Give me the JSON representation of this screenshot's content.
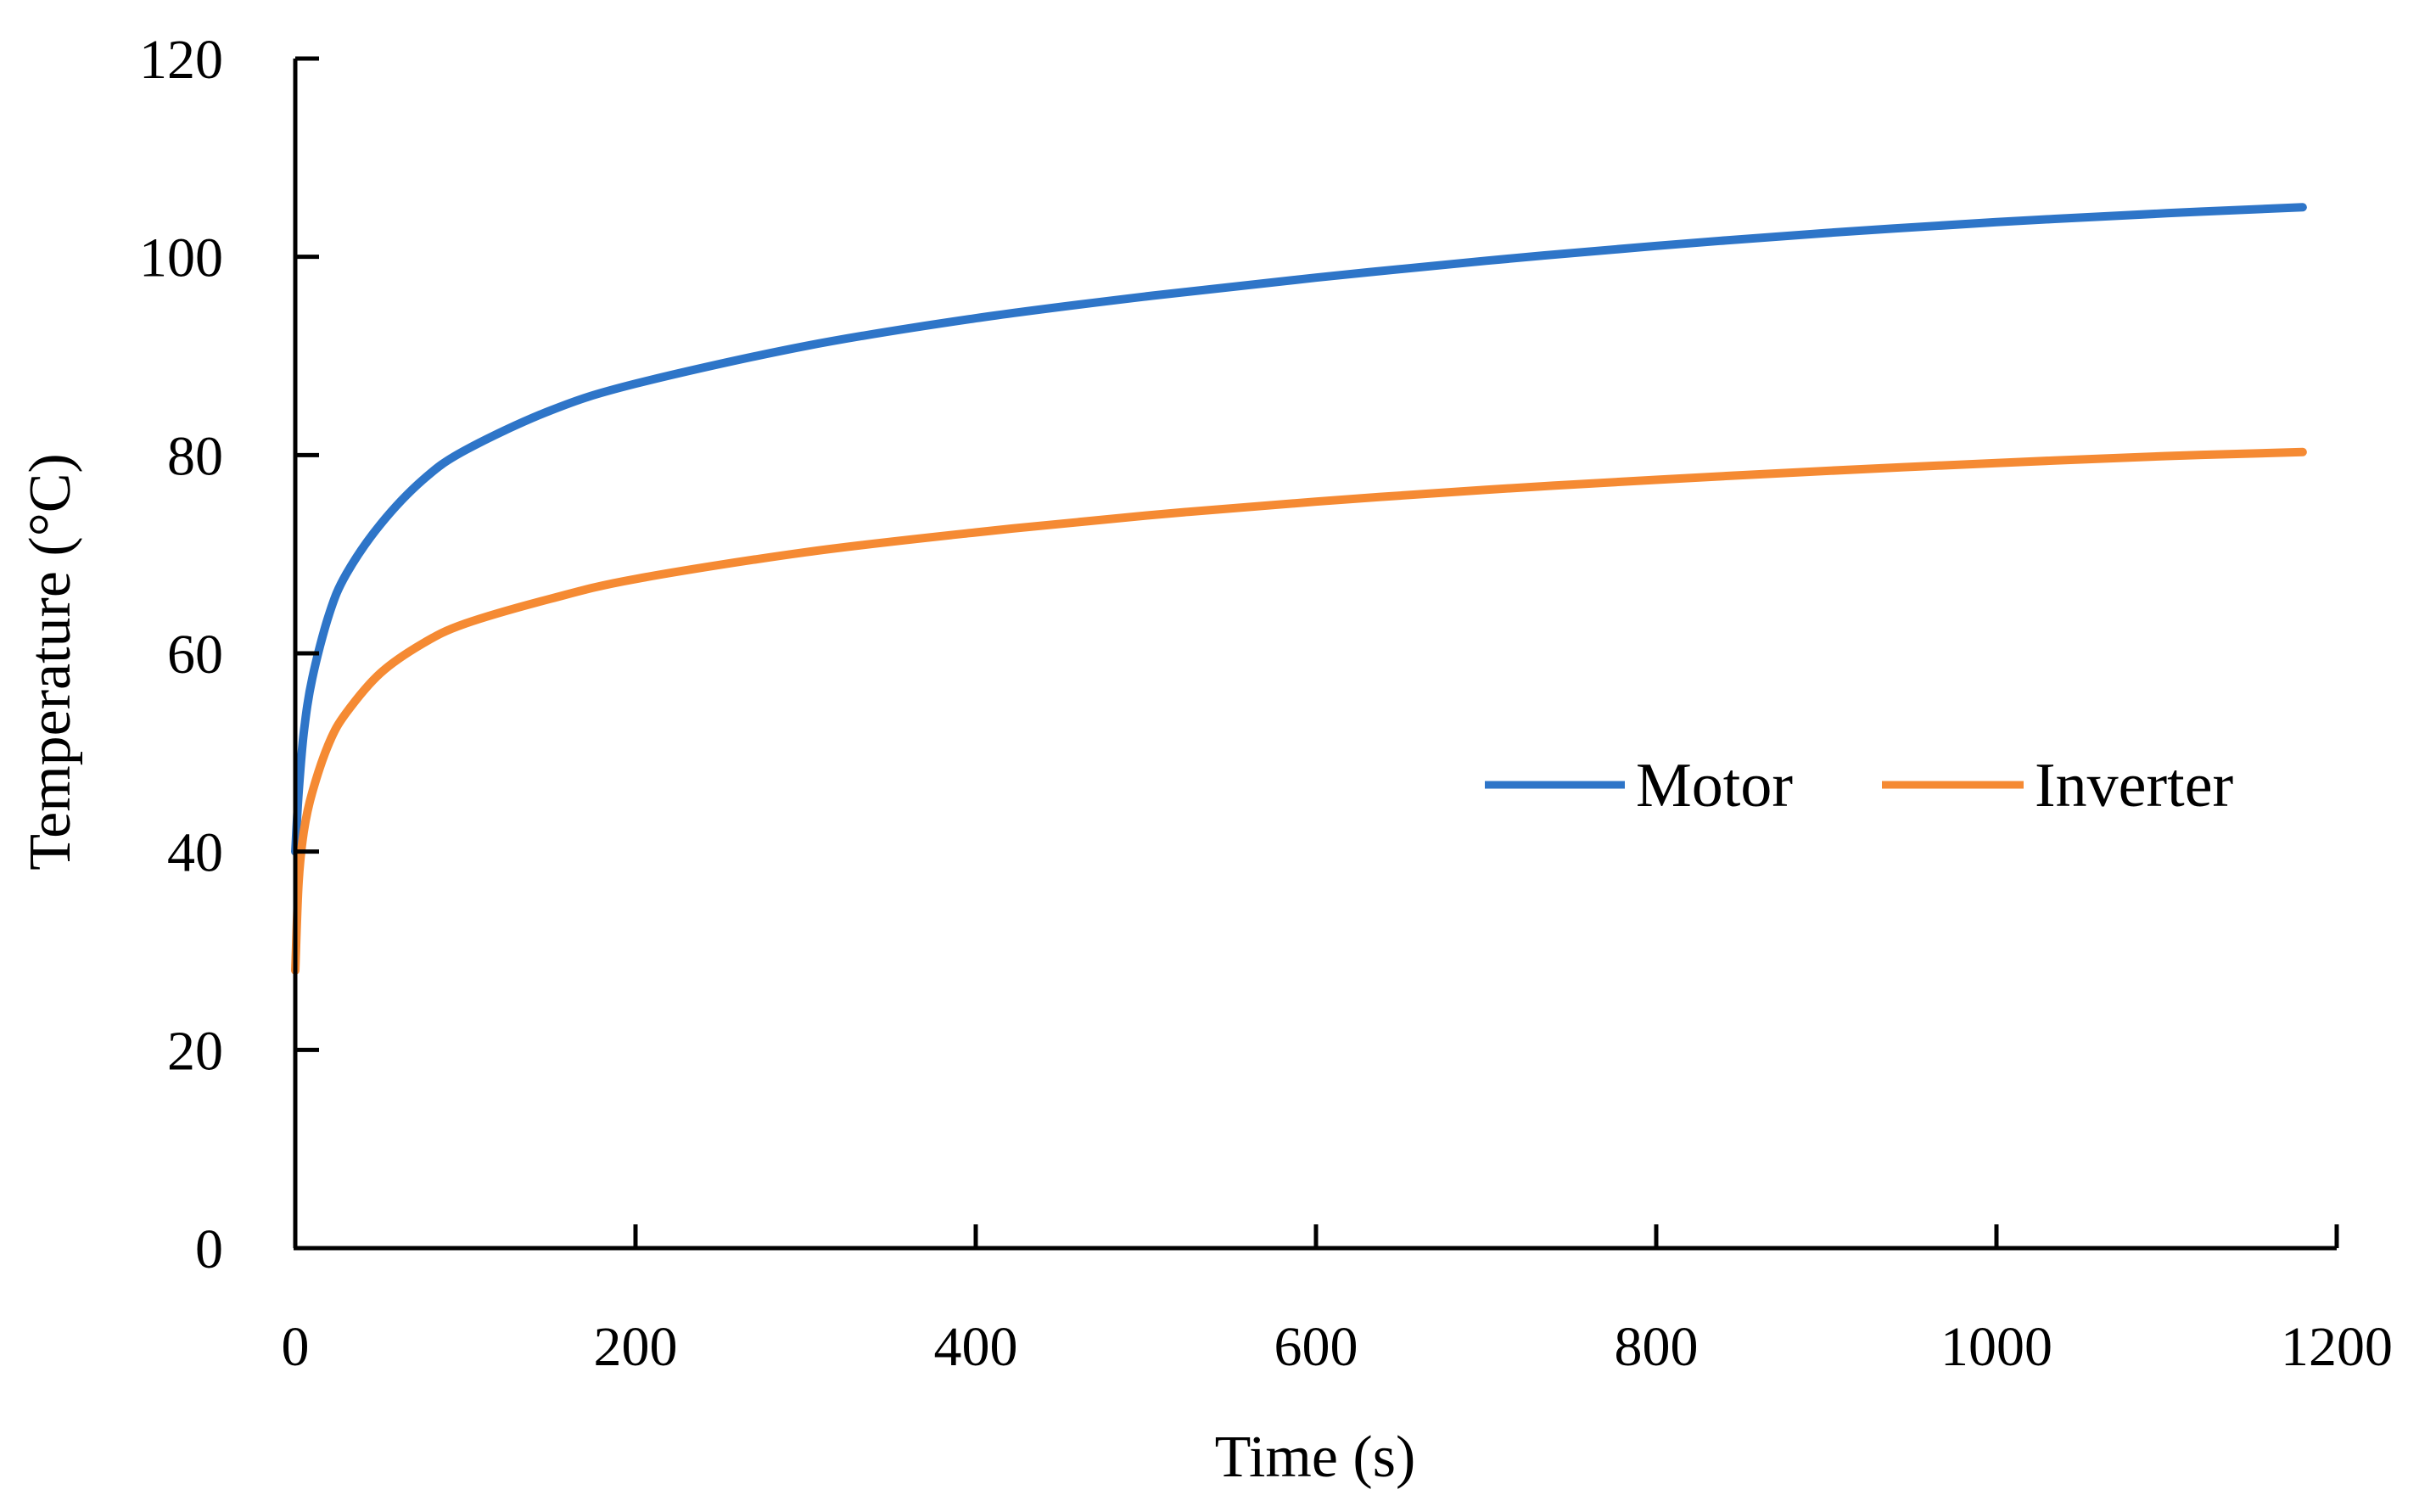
{
  "chart_data": {
    "type": "line",
    "title": "",
    "xlabel": "Time (s)",
    "ylabel": "Temperature (°C)",
    "xlim": [
      0,
      1200
    ],
    "ylim": [
      0,
      120
    ],
    "xticks": [
      0,
      200,
      400,
      600,
      800,
      1000,
      1200
    ],
    "yticks": [
      0,
      20,
      40,
      60,
      80,
      100,
      120
    ],
    "grid": false,
    "legend_position": "right-middle",
    "series": [
      {
        "name": "Motor",
        "color": "#2E75C8",
        "x": [
          0,
          2,
          5,
          10,
          20,
          30,
          50,
          75,
          100,
          150,
          200,
          300,
          400,
          500,
          600,
          700,
          800,
          900,
          1000,
          1100,
          1180
        ],
        "y": [
          40,
          46,
          52,
          57.5,
          64,
          68,
          73,
          77.5,
          80.5,
          84.5,
          87.2,
          91,
          93.8,
          96,
          97.9,
          99.6,
          101.1,
          102.4,
          103.5,
          104.4,
          105
        ]
      },
      {
        "name": "Inverter",
        "color": "#F58A33",
        "x": [
          0,
          2,
          5,
          10,
          20,
          30,
          50,
          75,
          100,
          150,
          200,
          300,
          400,
          500,
          600,
          700,
          800,
          900,
          1000,
          1100,
          1180
        ],
        "y": [
          28,
          37,
          42,
          46,
          51,
          54,
          58,
          61,
          63,
          65.5,
          67.5,
          70.2,
          72.2,
          73.9,
          75.3,
          76.5,
          77.5,
          78.4,
          79.2,
          79.9,
          80.3
        ]
      }
    ]
  }
}
